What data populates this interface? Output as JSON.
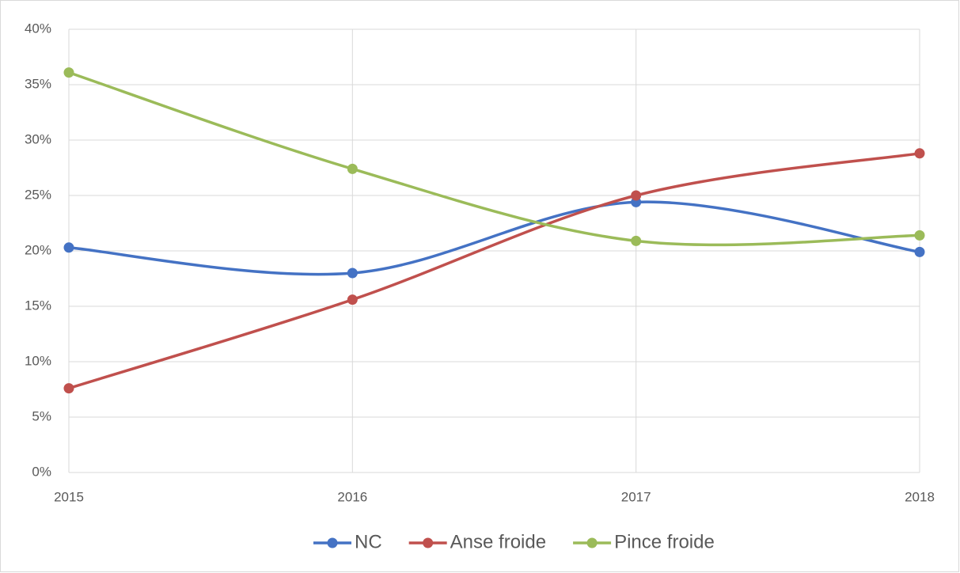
{
  "chart_data": {
    "type": "line",
    "smooth": true,
    "grid": true,
    "categories": [
      "2015",
      "2016",
      "2017",
      "2018"
    ],
    "series": [
      {
        "name": "NC",
        "color": "#4472c4",
        "values": [
          20.3,
          18.0,
          24.4,
          19.9
        ]
      },
      {
        "name": "Anse froide",
        "color": "#c0504d",
        "values": [
          7.6,
          15.6,
          25.0,
          28.8
        ]
      },
      {
        "name": "Pince froide",
        "color": "#9bbb59",
        "values": [
          36.1,
          27.4,
          20.9,
          21.4
        ]
      }
    ],
    "ylim": [
      0,
      40
    ],
    "yticks": [
      {
        "value": 0,
        "label": "0%"
      },
      {
        "value": 5,
        "label": "5%"
      },
      {
        "value": 10,
        "label": "10%"
      },
      {
        "value": 15,
        "label": "15%"
      },
      {
        "value": 20,
        "label": "20%"
      },
      {
        "value": 25,
        "label": "25%"
      },
      {
        "value": 30,
        "label": "30%"
      },
      {
        "value": 35,
        "label": "35%"
      },
      {
        "value": 40,
        "label": "40%"
      }
    ],
    "legend": "bottom"
  }
}
